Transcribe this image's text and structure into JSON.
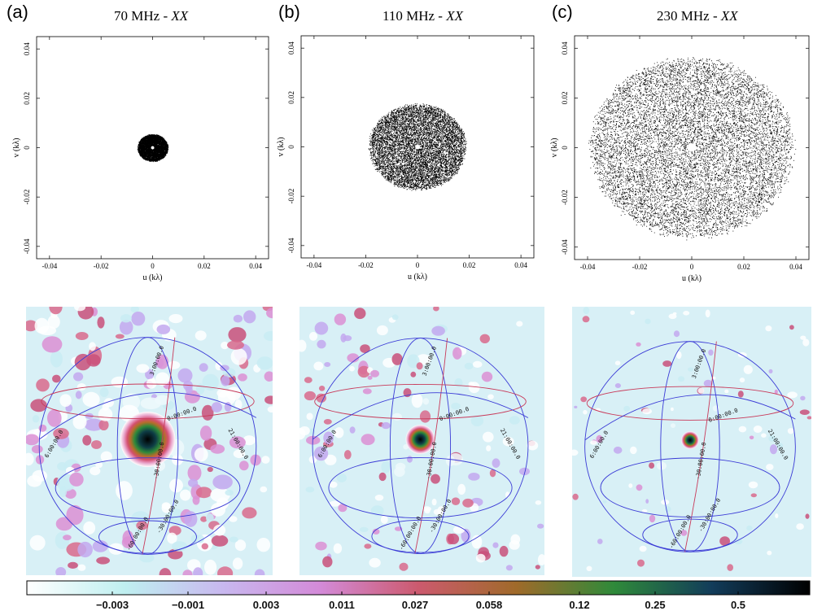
{
  "panels": [
    {
      "letter": "(a)",
      "freq": "70 MHz - ",
      "pol": "XX",
      "spread": 0.0058,
      "core": 0.0006,
      "density": 6000
    },
    {
      "letter": "(b)",
      "freq": "110 MHz - ",
      "pol": "XX",
      "spread": 0.0185,
      "core": 0.0009,
      "density": 9000
    },
    {
      "letter": "(c)",
      "freq": "230 MHz - ",
      "pol": "XX",
      "spread": 0.0385,
      "core": 0.0016,
      "density": 11000
    }
  ],
  "chart_data": [
    {
      "type": "scatter",
      "title": "70 MHz - XX",
      "xlabel": "u (kλ)",
      "ylabel": "v (kλ)",
      "xlim": [
        -0.045,
        0.045
      ],
      "ylim": [
        -0.045,
        0.045
      ],
      "xticks": [
        "-0.04",
        "-0.02",
        "0",
        "0.02",
        "0.04"
      ],
      "yticks": [
        "-0.04",
        "-0.02",
        "0",
        "0.02",
        "0.04"
      ]
    },
    {
      "type": "scatter",
      "title": "110 MHz - XX",
      "xlabel": "u (kλ)",
      "ylabel": "v (kλ)",
      "xlim": [
        -0.045,
        0.045
      ],
      "ylim": [
        -0.045,
        0.045
      ],
      "xticks": [
        "-0.04",
        "-0.02",
        "0",
        "0.02",
        "0.04"
      ],
      "yticks": [
        "-0.04",
        "-0.02",
        "0",
        "0.02",
        "0.04"
      ]
    },
    {
      "type": "scatter",
      "title": "230 MHz - XX",
      "xlabel": "u (kλ)",
      "ylabel": "v (kλ)",
      "xlim": [
        -0.045,
        0.045
      ],
      "ylim": [
        -0.045,
        0.045
      ],
      "xticks": [
        "-0.04",
        "-0.02",
        "0",
        "0.02",
        "0.04"
      ],
      "yticks": [
        "-0.04",
        "-0.02",
        "0",
        "0.02",
        "0.04"
      ]
    },
    {
      "type": "heatmap",
      "colorbar": {
        "ticks": [
          "-0.003",
          "-0.001",
          "0.003",
          "0.011",
          "0.027",
          "0.058",
          "0.12",
          "0.25",
          "0.5"
        ],
        "colors": [
          "#ffffff",
          "#bfeff0",
          "#c8b8ef",
          "#d38ad8",
          "#cc5a6e",
          "#a06a2a",
          "#2f8a3a",
          "#123c5a",
          "#000000"
        ]
      }
    }
  ],
  "grid_labels": [
    "3:00:00.0",
    "0:00:00.0",
    "6:00:00.0",
    "21:00:00.0",
    "-30:00:00.0",
    "-60:00:00.0",
    "-90:00:00.0",
    "-30:00:00.0"
  ]
}
